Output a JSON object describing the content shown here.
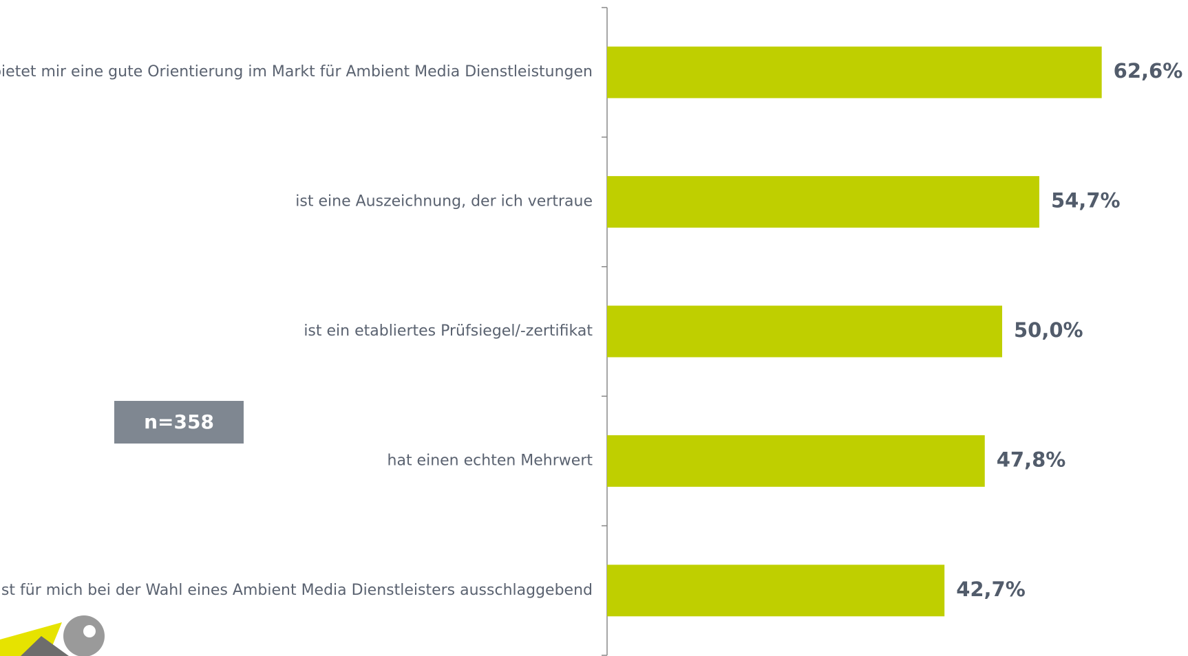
{
  "chart_data": {
    "type": "bar",
    "orientation": "horizontal",
    "categories": [
      "bietet mir eine gute Orientierung im Markt für Ambient Media Dienstleistungen",
      "ist eine Auszeichnung, der ich vertraue",
      "ist ein etabliertes Prüfsiegel/-zertifikat",
      "hat einen echten Mehrwert",
      "ist für mich bei der Wahl eines Ambient Media Dienstleisters ausschlaggebend"
    ],
    "values": [
      62.6,
      54.7,
      50.0,
      47.8,
      42.7
    ],
    "value_labels": [
      "62,6%",
      "54,7%",
      "50,0%",
      "47,8%",
      "42,7%"
    ],
    "color": "#bfcf00",
    "annotation": "n=358"
  }
}
